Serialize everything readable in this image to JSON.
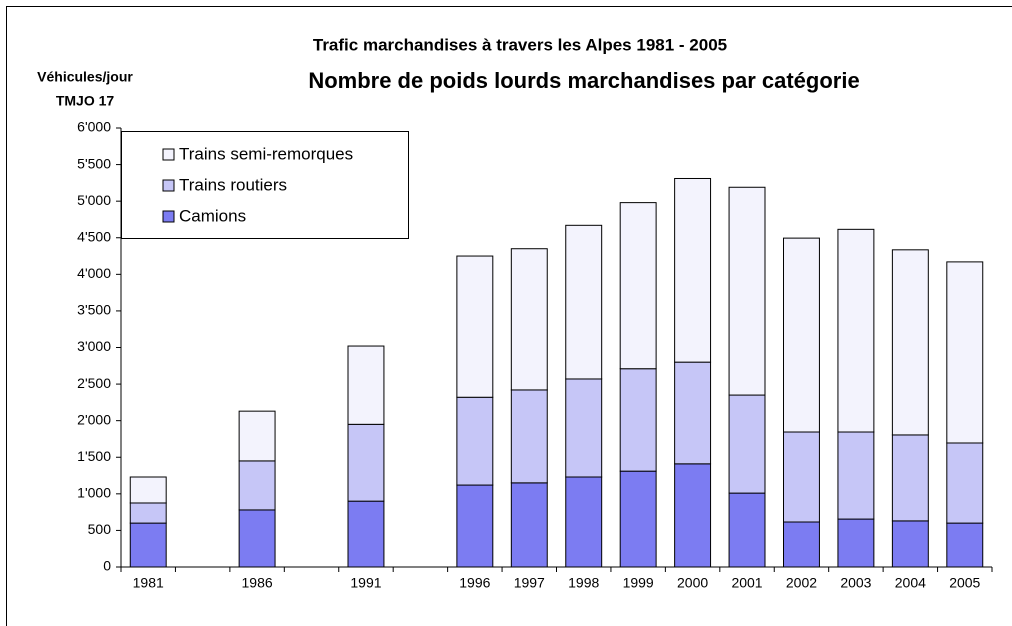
{
  "chart_data": {
    "type": "stacked_bar",
    "title": "Trafic marchandises à travers les Alpes 1981 - 2005",
    "subtitle": "Nombre de poids lourds marchandises par catégorie",
    "y_label": [
      "Véhicules/jour",
      "TMJO 17"
    ],
    "categories": [
      "1981",
      null,
      "1986",
      null,
      "1991",
      null,
      "1996",
      "1997",
      "1998",
      "1999",
      "2000",
      "2001",
      "2002",
      "2003",
      "2004",
      "2005"
    ],
    "series": [
      {
        "name": "Camions",
        "color": "#7c7cf2",
        "values": [
          600,
          null,
          780,
          null,
          900,
          null,
          1120,
          1150,
          1230,
          1310,
          1410,
          1010,
          615,
          655,
          630,
          600
        ]
      },
      {
        "name": "Trains routiers",
        "color": "#c6c6f7",
        "values": [
          275,
          null,
          670,
          null,
          1050,
          null,
          1200,
          1270,
          1340,
          1400,
          1390,
          1340,
          1230,
          1190,
          1175,
          1095
        ]
      },
      {
        "name": "Trains semi-remorques",
        "color": "#f3f3fd",
        "values": [
          355,
          null,
          680,
          null,
          1070,
          null,
          1930,
          1930,
          2100,
          2270,
          2510,
          2840,
          2650,
          2770,
          2530,
          2475
        ]
      }
    ],
    "ylim": [
      0,
      6000
    ],
    "yticks": [
      0,
      500,
      {
        "value": 1000,
        "label": "1'000"
      },
      {
        "value": 1500,
        "label": "1'500"
      },
      {
        "value": 2000,
        "label": "2'000"
      },
      {
        "value": 2500,
        "label": "2'500"
      },
      {
        "value": 3000,
        "label": "3'000"
      },
      {
        "value": 3500,
        "label": "3'500"
      },
      {
        "value": 4000,
        "label": "4'000"
      },
      {
        "value": 4500,
        "label": "4'500"
      },
      {
        "value": 5000,
        "label": "5'000"
      },
      {
        "value": 5500,
        "label": "5'500"
      },
      {
        "value": 6000,
        "label": "6'000"
      }
    ],
    "legend": "upper left"
  }
}
